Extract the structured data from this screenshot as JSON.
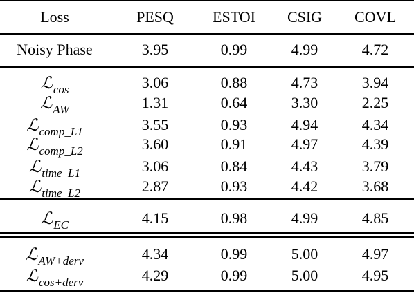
{
  "table": {
    "headers": [
      "Loss",
      "PESQ",
      "ESTOI",
      "CSIG",
      "COVL"
    ],
    "rows": [
      {
        "loss": "Noisy Phase",
        "values": [
          "3.95",
          "0.99",
          "4.99",
          "4.72"
        ]
      },
      {
        "loss_symbol": "ℒ",
        "loss_sub": "cos",
        "values": [
          "3.06",
          "0.88",
          "4.73",
          "3.94"
        ]
      },
      {
        "loss_symbol": "ℒ",
        "loss_sub": "AW",
        "values": [
          "1.31",
          "0.64",
          "3.30",
          "2.25"
        ]
      },
      {
        "loss_symbol": "ℒ",
        "loss_sub": "comp_L1",
        "values": [
          "3.55",
          "0.93",
          "4.94",
          "4.34"
        ]
      },
      {
        "loss_symbol": "ℒ",
        "loss_sub": "comp_L2",
        "values": [
          "3.60",
          "0.91",
          "4.97",
          "4.39"
        ]
      },
      {
        "loss_symbol": "ℒ",
        "loss_sub": "time_L1",
        "values": [
          "3.06",
          "0.84",
          "4.43",
          "3.79"
        ]
      },
      {
        "loss_symbol": "ℒ",
        "loss_sub": "time_L2",
        "values": [
          "2.87",
          "0.93",
          "4.42",
          "3.68"
        ]
      },
      {
        "loss_symbol": "ℒ",
        "loss_sub": "EC",
        "values": [
          "4.15",
          "0.98",
          "4.99",
          "4.85"
        ]
      },
      {
        "loss_symbol": "ℒ",
        "loss_sub": "AW+derv",
        "values": [
          "4.34",
          "0.99",
          "5.00",
          "4.97"
        ]
      },
      {
        "loss_symbol": "ℒ",
        "loss_sub": "cos+derv",
        "values": [
          "4.29",
          "0.99",
          "5.00",
          "4.95"
        ]
      }
    ]
  }
}
